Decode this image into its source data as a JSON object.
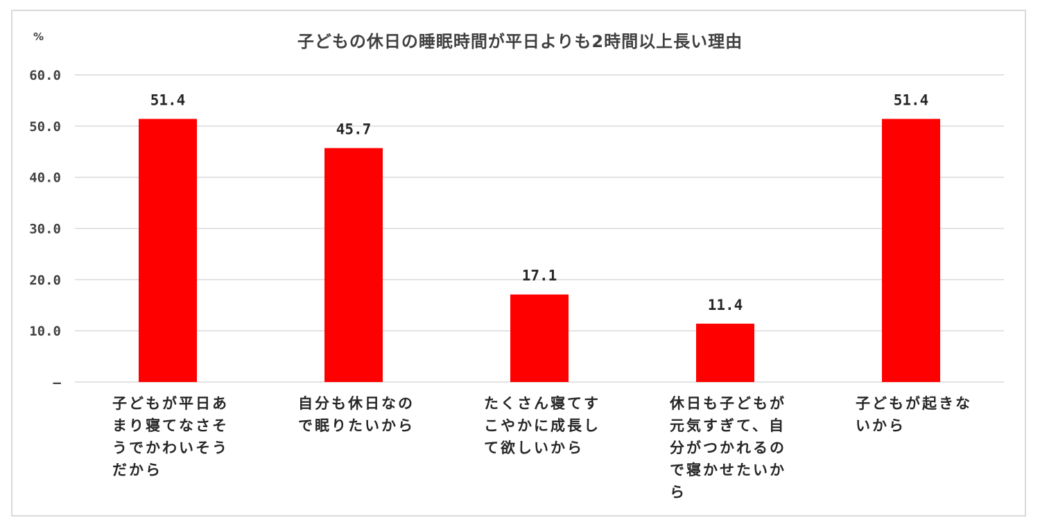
{
  "chart_data": {
    "type": "bar",
    "title": "子どもの休日の睡眠時間が平日よりも2時間以上長い理由",
    "unit_label": "%",
    "ylim": [
      0,
      60
    ],
    "yticks": [
      "–",
      "10.0",
      "20.0",
      "30.0",
      "40.0",
      "50.0",
      "60.0"
    ],
    "categories": [
      "子どもが平日あまり寝てなさそうでかわいそうだから",
      "自分も休日なので眠りたいから",
      "たくさん寝てすこやかに成長して欲しいから",
      "休日も子どもが元気すぎて、自分がつかれるので寝かせたいから",
      "子どもが起きないから"
    ],
    "values": [
      51.4,
      45.7,
      17.1,
      11.4,
      51.4
    ],
    "value_labels": [
      "51.4",
      "45.7",
      "17.1",
      "11.4",
      "51.4"
    ],
    "bar_color": "#ff0000",
    "grid": true,
    "legend": "none"
  }
}
